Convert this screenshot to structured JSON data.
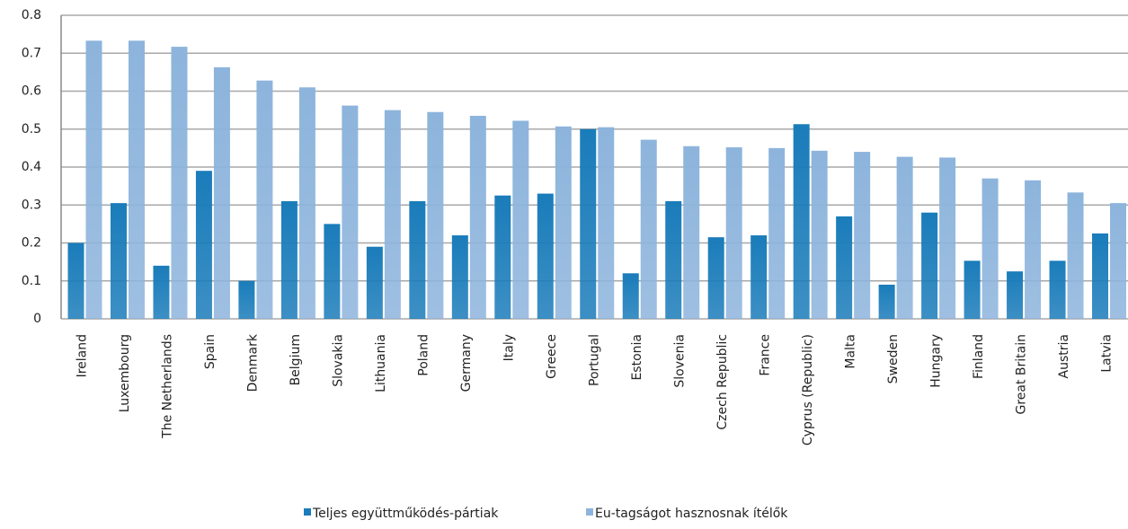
{
  "chart_data": {
    "type": "bar",
    "categories": [
      "Ireland",
      "Luxembourg",
      "The Netherlands",
      "Spain",
      "Denmark",
      "Belgium",
      "Slovakia",
      "Lithuania",
      "Poland",
      "Germany",
      "Italy",
      "Greece",
      "Portugal",
      "Estonia",
      "Slovenia",
      "Czech Republic",
      "France",
      "Cyprus (Republic)",
      "Malta",
      "Sweden",
      "Hungary",
      "Finland",
      "Great Britain",
      "Austria",
      "Latvia"
    ],
    "series": [
      {
        "name": "Teljes együttműködés-pártiak",
        "color": "#1a7cba",
        "values": [
          0.2,
          0.305,
          0.14,
          0.39,
          0.1,
          0.31,
          0.25,
          0.19,
          0.31,
          0.22,
          0.325,
          0.33,
          0.5,
          0.12,
          0.31,
          0.215,
          0.22,
          0.513,
          0.27,
          0.09,
          0.28,
          0.153,
          0.125,
          0.153,
          0.225
        ]
      },
      {
        "name": "Eu-tagságot hasznosnak ítélők",
        "color": "#8db4dc",
        "values": [
          0.733,
          0.733,
          0.717,
          0.663,
          0.628,
          0.61,
          0.562,
          0.55,
          0.545,
          0.535,
          0.522,
          0.507,
          0.505,
          0.472,
          0.455,
          0.452,
          0.45,
          0.443,
          0.44,
          0.427,
          0.425,
          0.37,
          0.365,
          0.333,
          0.305
        ]
      }
    ],
    "ylim": [
      0,
      0.8
    ],
    "yticks": [
      0,
      0.1,
      0.2,
      0.3,
      0.4,
      0.5,
      0.6,
      0.7,
      0.8
    ],
    "grid": true,
    "legend": "bottom"
  }
}
